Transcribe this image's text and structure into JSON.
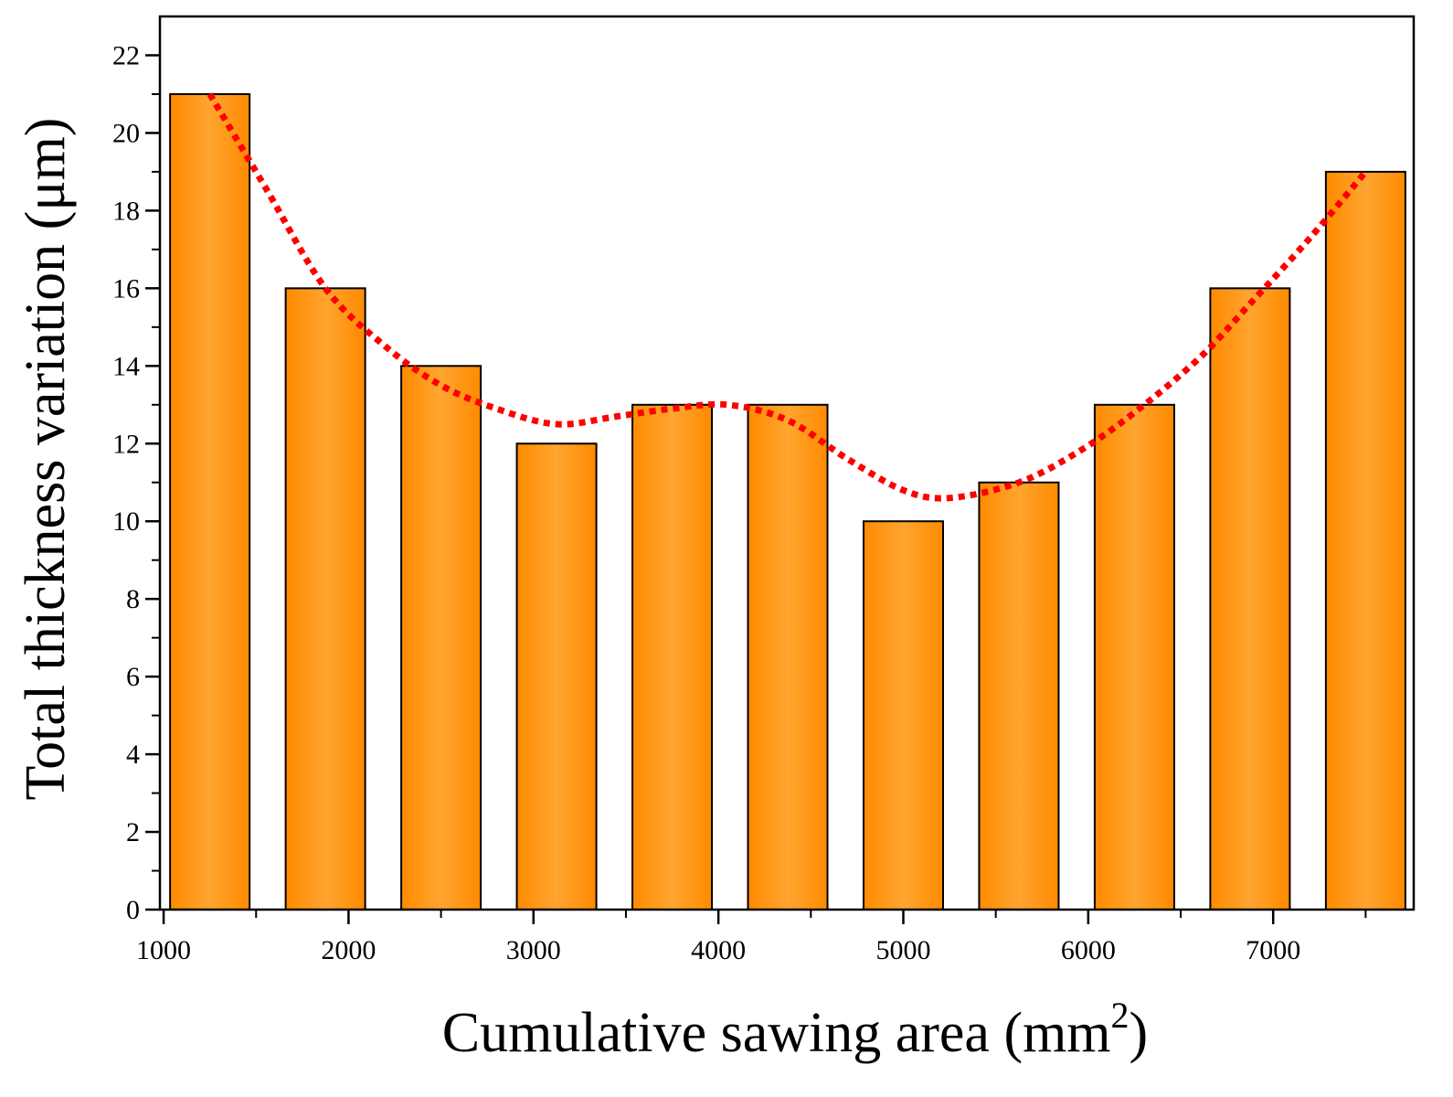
{
  "chart_data": {
    "type": "bar",
    "title": "",
    "xlabel": "Cumulative sawing area (mm",
    "xlabel_sup": "2",
    "xlabel_close": ")",
    "ylabel": "Total thickness variation (μm)",
    "x": [
      1250,
      1875,
      2500,
      3125,
      3750,
      4375,
      5000,
      5625,
      6250,
      6875,
      7500
    ],
    "values": [
      21,
      16,
      14,
      12,
      13,
      13,
      10,
      11,
      13,
      16,
      19
    ],
    "bar_width_units": 430,
    "xlim": [
      980,
      7760
    ],
    "ylim": [
      0,
      23
    ],
    "xticks": [
      1000,
      2000,
      3000,
      4000,
      5000,
      6000,
      7000
    ],
    "xtick_labels": [
      "1000",
      "2000",
      "3000",
      "4000",
      "5000",
      "6000",
      "7000"
    ],
    "xminor": [
      1500,
      2500,
      3500,
      4500,
      5500,
      6500,
      7500
    ],
    "yticks": [
      0,
      2,
      4,
      6,
      8,
      10,
      12,
      14,
      16,
      18,
      20,
      22
    ],
    "ytick_labels": [
      "0",
      "2",
      "4",
      "6",
      "8",
      "10",
      "12",
      "14",
      "16",
      "18",
      "20",
      "22"
    ],
    "yminor": [
      1,
      3,
      5,
      7,
      9,
      11,
      13,
      15,
      17,
      19,
      21
    ],
    "trend_line": {
      "style": "dotted",
      "points": [
        [
          1250,
          21
        ],
        [
          1550,
          18.6
        ],
        [
          1875,
          16.0
        ],
        [
          2200,
          14.5
        ],
        [
          2500,
          13.5
        ],
        [
          2800,
          12.9
        ],
        [
          3125,
          12.5
        ],
        [
          3450,
          12.7
        ],
        [
          3750,
          12.9
        ],
        [
          4050,
          13.0
        ],
        [
          4375,
          12.6
        ],
        [
          4700,
          11.6
        ],
        [
          5000,
          10.8
        ],
        [
          5250,
          10.6
        ],
        [
          5625,
          11.0
        ],
        [
          5950,
          11.8
        ],
        [
          6250,
          12.8
        ],
        [
          6600,
          14.2
        ],
        [
          6875,
          15.6
        ],
        [
          7200,
          17.3
        ],
        [
          7500,
          19.0
        ]
      ]
    },
    "colors": {
      "bar_edge": "#ff8a00",
      "bar_center": "#ffa530",
      "bar_outline": "#000000",
      "trend_line": "#ff0000"
    },
    "grid": false,
    "legend": "none"
  }
}
